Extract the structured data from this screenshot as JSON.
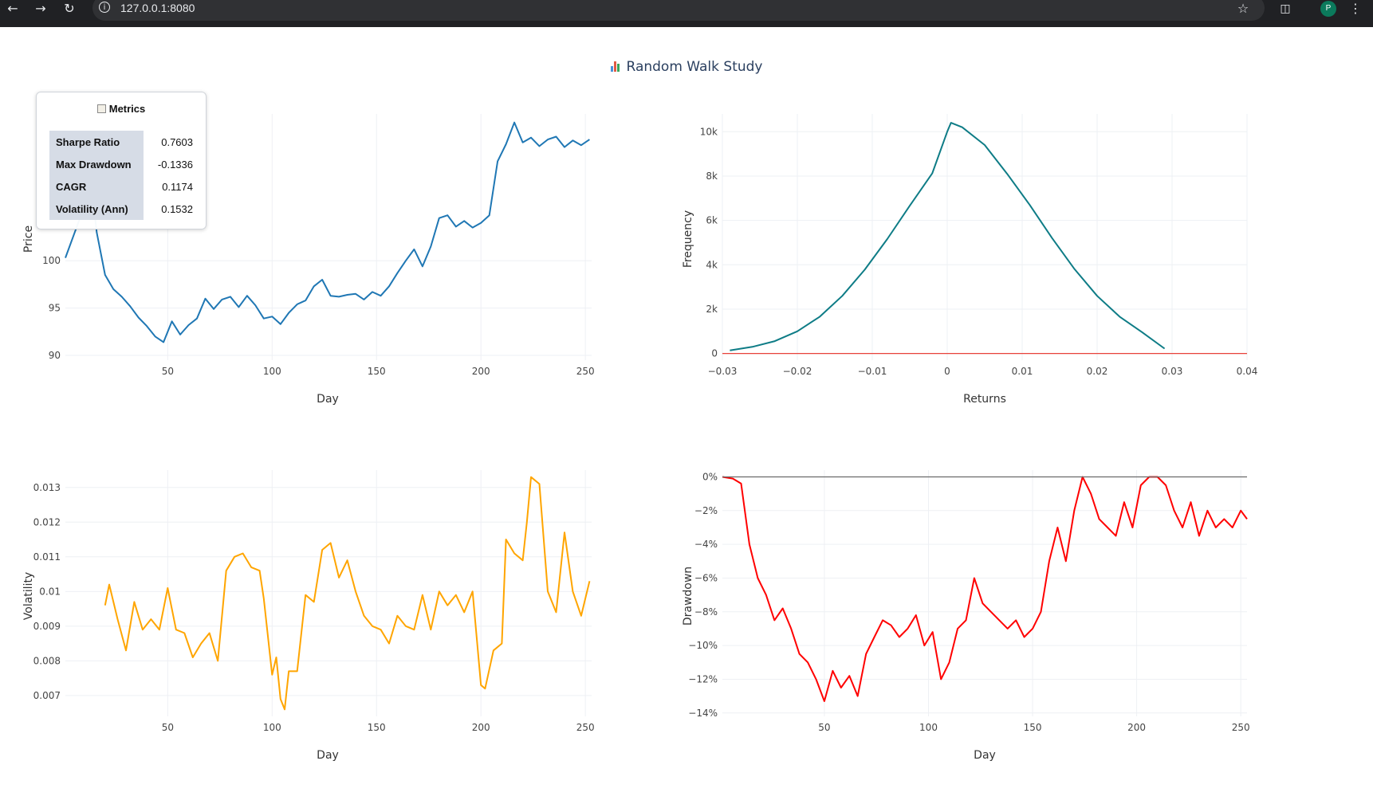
{
  "browser": {
    "url": "127.0.0.1:8080",
    "avatar_letter": "P"
  },
  "page": {
    "title": "Random Walk Study"
  },
  "metrics": {
    "title": "Metrics",
    "rows": [
      {
        "label": "Sharpe Ratio",
        "value": "0.7603"
      },
      {
        "label": "Max Drawdown",
        "value": "-0.1336"
      },
      {
        "label": "CAGR",
        "value": "0.1174"
      },
      {
        "label": "Volatility (Ann)",
        "value": "0.1532"
      }
    ]
  },
  "colors": {
    "price": "#1f77b4",
    "distribution": "#0e7c86",
    "normal_ref": "#e8413a",
    "volatility": "#ffa500",
    "drawdown": "#ff0000",
    "grid": "#eef0f4",
    "text": "#2a3f5f"
  },
  "chart_data": [
    {
      "id": "price",
      "type": "line",
      "xlabel": "Day",
      "ylabel": "Price",
      "xlim": [
        1,
        253
      ],
      "ylim": [
        89.5,
        115.5
      ],
      "xticks": [
        50,
        100,
        150,
        200,
        250
      ],
      "yticks": [
        90,
        95,
        100
      ],
      "x": [
        1,
        8,
        12,
        16,
        20,
        24,
        28,
        32,
        36,
        40,
        44,
        48,
        52,
        56,
        60,
        64,
        68,
        72,
        76,
        80,
        84,
        88,
        92,
        96,
        100,
        104,
        108,
        112,
        116,
        120,
        124,
        128,
        132,
        136,
        140,
        144,
        148,
        152,
        156,
        160,
        164,
        168,
        172,
        176,
        180,
        184,
        188,
        192,
        196,
        200,
        204,
        208,
        212,
        216,
        220,
        224,
        228,
        232,
        236,
        240,
        244,
        248,
        252
      ],
      "series": [
        {
          "values": [
            100.3,
            104.5,
            111.0,
            103.0,
            98.5,
            97.0,
            96.2,
            95.2,
            94.0,
            93.1,
            92.0,
            91.4,
            93.6,
            92.2,
            93.2,
            93.9,
            96.0,
            94.9,
            95.9,
            96.2,
            95.1,
            96.3,
            95.3,
            93.9,
            94.1,
            93.3,
            94.5,
            95.4,
            95.8,
            97.3,
            98.0,
            96.3,
            96.2,
            96.4,
            96.5,
            95.9,
            96.7,
            96.3,
            97.3,
            98.7,
            100.0,
            101.2,
            99.4,
            101.5,
            104.5,
            104.8,
            103.6,
            104.2,
            103.5,
            104.0,
            104.8,
            110.5,
            112.3,
            114.6,
            112.5,
            113.0,
            112.1,
            112.8,
            113.1,
            112.0,
            112.7,
            112.2,
            112.8
          ]
        }
      ]
    },
    {
      "id": "returns-distribution",
      "type": "line",
      "xlabel": "Returns",
      "ylabel": "Frequency",
      "xlim": [
        -0.03,
        0.04
      ],
      "ylim": [
        -300,
        10800
      ],
      "xticks": [
        -0.03,
        -0.02,
        -0.01,
        0,
        0.01,
        0.02,
        0.03,
        0.04
      ],
      "xtick_labels": [
        "−0.03",
        "−0.02",
        "−0.01",
        "0",
        "0.01",
        "0.02",
        "0.03",
        "0.04"
      ],
      "yticks": [
        0,
        2000,
        4000,
        6000,
        8000,
        10000
      ],
      "ytick_labels": [
        "0",
        "2k",
        "4k",
        "6k",
        "8k",
        "10k"
      ],
      "x": [
        -0.029,
        -0.026,
        -0.023,
        -0.02,
        -0.017,
        -0.014,
        -0.011,
        -0.008,
        -0.005,
        -0.002,
        0.0,
        0.0005,
        0.002,
        0.005,
        0.008,
        0.011,
        0.014,
        0.017,
        0.02,
        0.023,
        0.026,
        0.029
      ],
      "series": [
        {
          "values": [
            140,
            300,
            560,
            1000,
            1660,
            2600,
            3780,
            5160,
            6660,
            8120,
            10000,
            10400,
            10200,
            9400,
            8100,
            6700,
            5200,
            3800,
            2600,
            1660,
            960,
            220
          ]
        },
        {
          "values": [
            0,
            0,
            0,
            0,
            0,
            0,
            0,
            0,
            0,
            0,
            0,
            0,
            0,
            0,
            0,
            0,
            0,
            0,
            0,
            0,
            0,
            0
          ]
        }
      ]
    },
    {
      "id": "volatility",
      "type": "line",
      "xlabel": "Day",
      "ylabel": "Volatility",
      "xlim": [
        1,
        253
      ],
      "ylim": [
        0.0064,
        0.0135
      ],
      "xticks": [
        50,
        100,
        150,
        200,
        250
      ],
      "yticks": [
        0.007,
        0.008,
        0.009,
        0.01,
        0.011,
        0.012,
        0.013
      ],
      "ytick_labels": [
        "0.007",
        "0.008",
        "0.009",
        "0.01",
        "0.011",
        "0.012",
        "0.013"
      ],
      "x": [
        20,
        22,
        26,
        30,
        34,
        38,
        42,
        46,
        50,
        54,
        58,
        62,
        66,
        70,
        74,
        78,
        82,
        86,
        90,
        94,
        96,
        100,
        102,
        104,
        106,
        108,
        112,
        116,
        120,
        124,
        128,
        132,
        136,
        140,
        144,
        148,
        152,
        156,
        160,
        164,
        168,
        172,
        176,
        180,
        184,
        188,
        192,
        196,
        200,
        202,
        206,
        210,
        212,
        216,
        220,
        222,
        224,
        228,
        232,
        236,
        240,
        244,
        248,
        252
      ],
      "series": [
        {
          "values": [
            0.0096,
            0.0102,
            0.0092,
            0.0083,
            0.0097,
            0.0089,
            0.0092,
            0.0089,
            0.0101,
            0.0089,
            0.0088,
            0.0081,
            0.0085,
            0.0088,
            0.008,
            0.0106,
            0.011,
            0.0111,
            0.0107,
            0.0106,
            0.0098,
            0.0076,
            0.0081,
            0.0069,
            0.0066,
            0.0077,
            0.0077,
            0.0099,
            0.0097,
            0.0112,
            0.0114,
            0.0104,
            0.0109,
            0.01,
            0.0093,
            0.009,
            0.0089,
            0.0085,
            0.0093,
            0.009,
            0.0089,
            0.0099,
            0.0089,
            0.01,
            0.0096,
            0.0099,
            0.0094,
            0.01,
            0.0073,
            0.0072,
            0.0083,
            0.0085,
            0.0115,
            0.0111,
            0.0109,
            0.012,
            0.0133,
            0.0131,
            0.01,
            0.0094,
            0.0117,
            0.01,
            0.0093,
            0.0103
          ]
        }
      ]
    },
    {
      "id": "drawdown",
      "type": "line",
      "xlabel": "Day",
      "ylabel": "Drawdown",
      "xlim": [
        1,
        253
      ],
      "ylim": [
        -0.142,
        0.004
      ],
      "xticks": [
        50,
        100,
        150,
        200,
        250
      ],
      "yticks": [
        0,
        -0.02,
        -0.04,
        -0.06,
        -0.08,
        -0.1,
        -0.12,
        -0.14
      ],
      "ytick_labels": [
        "0%",
        "−2%",
        "−4%",
        "−6%",
        "−8%",
        "−10%",
        "−12%",
        "−14%"
      ],
      "x": [
        1,
        6,
        10,
        14,
        18,
        22,
        26,
        30,
        34,
        38,
        42,
        46,
        50,
        54,
        58,
        62,
        66,
        70,
        74,
        78,
        82,
        86,
        90,
        94,
        98,
        102,
        106,
        110,
        114,
        118,
        122,
        126,
        130,
        134,
        138,
        142,
        146,
        150,
        154,
        158,
        162,
        166,
        170,
        174,
        178,
        182,
        186,
        190,
        194,
        198,
        202,
        206,
        210,
        214,
        218,
        222,
        226,
        230,
        234,
        238,
        242,
        246,
        250,
        253
      ],
      "series": [
        {
          "values": [
            0,
            -0.001,
            -0.004,
            -0.04,
            -0.06,
            -0.07,
            -0.085,
            -0.078,
            -0.09,
            -0.105,
            -0.11,
            -0.12,
            -0.133,
            -0.115,
            -0.125,
            -0.118,
            -0.13,
            -0.105,
            -0.095,
            -0.085,
            -0.088,
            -0.095,
            -0.09,
            -0.082,
            -0.1,
            -0.092,
            -0.12,
            -0.11,
            -0.09,
            -0.085,
            -0.06,
            -0.075,
            -0.08,
            -0.085,
            -0.09,
            -0.085,
            -0.095,
            -0.09,
            -0.08,
            -0.05,
            -0.03,
            -0.05,
            -0.02,
            0,
            -0.01,
            -0.025,
            -0.03,
            -0.035,
            -0.015,
            -0.03,
            -0.005,
            0,
            0,
            -0.005,
            -0.02,
            -0.03,
            -0.015,
            -0.035,
            -0.02,
            -0.03,
            -0.025,
            -0.03,
            -0.02,
            -0.025
          ]
        },
        {
          "values": [
            0,
            0,
            0,
            0,
            0,
            0,
            0,
            0,
            0,
            0,
            0,
            0,
            0,
            0,
            0,
            0,
            0,
            0,
            0,
            0,
            0,
            0,
            0,
            0,
            0,
            0,
            0,
            0,
            0,
            0,
            0,
            0,
            0,
            0,
            0,
            0,
            0,
            0,
            0,
            0,
            0,
            0,
            0,
            0,
            0,
            0,
            0,
            0,
            0,
            0,
            0,
            0,
            0,
            0,
            0,
            0,
            0,
            0,
            0,
            0,
            0,
            0,
            0,
            0
          ]
        }
      ]
    }
  ]
}
